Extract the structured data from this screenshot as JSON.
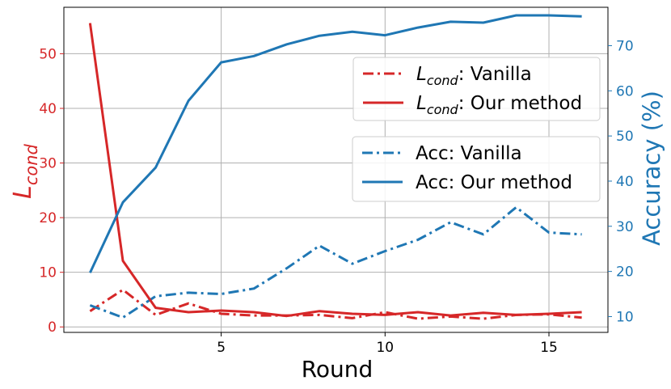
{
  "chart_data": {
    "type": "line",
    "xlabel": "Round",
    "ylabel_left": {
      "base": "L",
      "sub": "cond"
    },
    "ylabel_right": "Accuracy (%)",
    "xlim": [
      0.2,
      16.8
    ],
    "ylim_left": [
      -1,
      58.5
    ],
    "ylim_right": [
      6.5,
      78.5
    ],
    "x_ticks": [
      5,
      10,
      15
    ],
    "y_ticks_left": [
      0,
      10,
      20,
      30,
      40,
      50
    ],
    "y_ticks_right": [
      10,
      20,
      30,
      40,
      50,
      60,
      70
    ],
    "grid": true,
    "colors": {
      "red": "#d62728",
      "blue": "#1f77b4"
    },
    "x": [
      1,
      2,
      3,
      4,
      5,
      6,
      7,
      8,
      9,
      10,
      11,
      12,
      13,
      14,
      15,
      16
    ],
    "series": [
      {
        "name": ": Vanilla",
        "name_prefix": {
          "base": "L",
          "sub": "cond"
        },
        "axis": "left",
        "color": "#d62728",
        "style": "dashdot",
        "values": [
          2.9,
          6.8,
          2.2,
          4.3,
          2.4,
          2.1,
          2.1,
          2.2,
          1.6,
          2.7,
          1.5,
          1.9,
          1.5,
          2.2,
          2.3,
          1.7
        ]
      },
      {
        "name": ": Our method",
        "name_prefix": {
          "base": "L",
          "sub": "cond"
        },
        "axis": "left",
        "color": "#d62728",
        "style": "solid",
        "values": [
          55.6,
          12.1,
          3.5,
          2.7,
          3.0,
          2.7,
          2.0,
          2.9,
          2.4,
          2.2,
          2.7,
          2.1,
          2.6,
          2.2,
          2.4,
          2.7
        ]
      },
      {
        "name": "Acc: Vanilla",
        "axis": "right",
        "color": "#1f77b4",
        "style": "dashdot",
        "values": [
          12.5,
          9.8,
          14.5,
          15.3,
          15.0,
          16.2,
          20.7,
          25.7,
          21.7,
          24.5,
          27.0,
          30.9,
          28.2,
          34.2,
          28.6,
          28.2
        ]
      },
      {
        "name": "Acc: Our method",
        "axis": "right",
        "color": "#1f77b4",
        "style": "solid",
        "values": [
          19.7,
          35.3,
          43.0,
          57.8,
          66.3,
          67.7,
          70.3,
          72.2,
          73.1,
          72.3,
          74.0,
          75.3,
          75.1,
          76.7,
          76.7,
          76.5
        ]
      }
    ],
    "legends": [
      {
        "position": "upper-right",
        "items": [
          0,
          1
        ]
      },
      {
        "position": "center-right",
        "items": [
          2,
          3
        ]
      }
    ]
  }
}
